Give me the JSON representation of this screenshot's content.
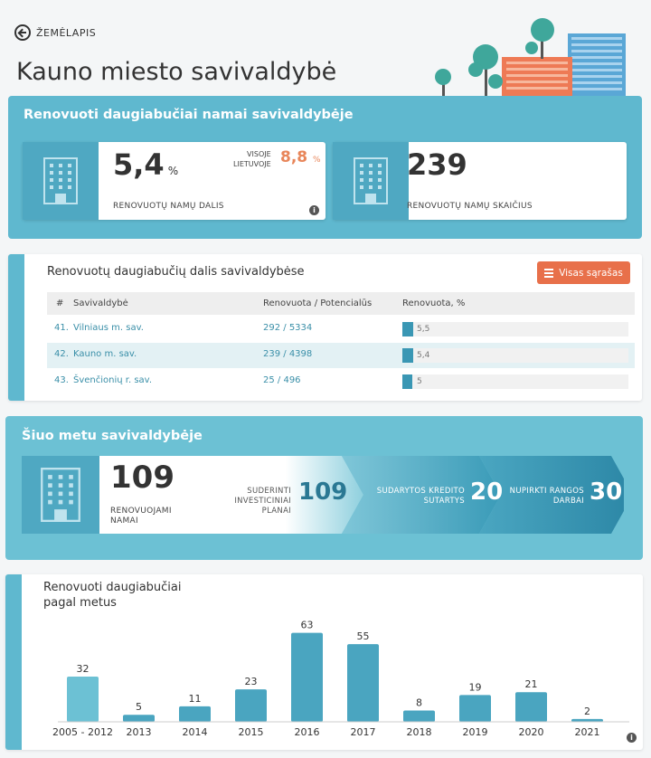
{
  "nav": {
    "back_label": "ŽEMĖLAPIS"
  },
  "page_title": "Kauno miesto savivaldybė",
  "renovated": {
    "title": "Renovuoti daugiabučiai namai savivaldybėje",
    "share_value": "5,4",
    "share_unit": "%",
    "share_label": "RENOVUOTŲ NAMŲ DALIS",
    "country_label_1": "VISOJE",
    "country_label_2": "LIETUVOJE",
    "country_value": "8,8",
    "country_unit": "%",
    "info_glyph": "i",
    "count_value": "239",
    "count_label": "RENOVUOTŲ NAMŲ SKAIČIUS"
  },
  "ranking": {
    "title": "Renovuotų daugiabučių dalis savivaldybėse",
    "button_label": "Visas sąrašas",
    "columns": [
      "#",
      "Savivaldybė",
      "Renovuota / Potencialūs",
      "Renovuota, %"
    ],
    "rows": [
      {
        "rank": "41.",
        "name": "Vilniaus m. sav.",
        "ratio": "292 / 5334",
        "percent": "5,5",
        "value": 5.5,
        "highlight": false
      },
      {
        "rank": "42.",
        "name": "Kauno m. sav.",
        "ratio": "239 / 4398",
        "percent": "5,4",
        "value": 5.4,
        "highlight": true
      },
      {
        "rank": "43.",
        "name": "Švenčionių r. sav.",
        "ratio": "25 / 496",
        "percent": "5",
        "value": 5.0,
        "highlight": false
      }
    ]
  },
  "current": {
    "title": "Šiuo metu savivaldybėje",
    "count_value": "109",
    "count_label_1": "RENOVUOJAMI",
    "count_label_2": "NAMAI",
    "stages": [
      {
        "label_1": "SUDERINTI INVESTICINIAI",
        "label_2": "PLANAI",
        "value": "109"
      },
      {
        "label_1": "SUDARYTOS KREDITO",
        "label_2": "SUTARTYS",
        "value": "20"
      },
      {
        "label_1": "NUPIRKTI RANGOS",
        "label_2": "DARBAI",
        "value": "30"
      }
    ]
  },
  "by_year": {
    "title_1": "Renovuoti daugiabučiai",
    "title_2": "pagal metus",
    "info_glyph": "i"
  },
  "colors": {
    "accent": "#5fb8cf",
    "bar": "#4aa5c0",
    "bar_first": "#6cc1d4",
    "orange": "#e8704a"
  },
  "chart_data": {
    "type": "bar",
    "categories": [
      "2005 - 2012",
      "2013",
      "2014",
      "2015",
      "2016",
      "2017",
      "2018",
      "2019",
      "2020",
      "2021"
    ],
    "values": [
      32,
      5,
      11,
      23,
      63,
      55,
      8,
      19,
      21,
      2
    ],
    "title": "Renovuoti daugiabučiai pagal metus",
    "xlabel": "",
    "ylabel": "",
    "ylim": [
      0,
      66
    ],
    "grid": false
  }
}
